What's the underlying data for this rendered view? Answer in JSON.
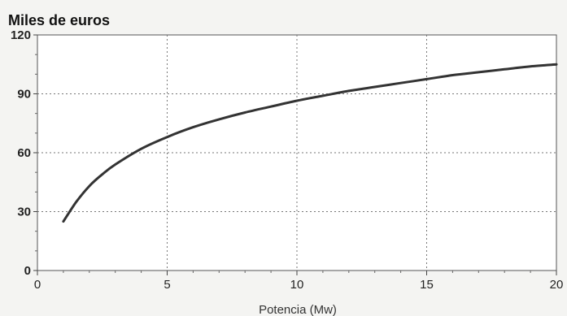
{
  "chart_data": {
    "type": "line",
    "title": "",
    "unit_label": "Miles de euros",
    "xlabel": "Potencia (Mw)",
    "ylabel": "",
    "xlim": [
      0,
      20
    ],
    "ylim": [
      0,
      120
    ],
    "x_ticks": [
      "0",
      "5",
      "10",
      "15",
      "20"
    ],
    "y_ticks": [
      "0",
      "30",
      "60",
      "90",
      "120"
    ],
    "grid": true,
    "series": [
      {
        "x": [
          1,
          1.5,
          2,
          2.5,
          3,
          4,
          5,
          6,
          7,
          8,
          9,
          10,
          11,
          12,
          13,
          14,
          15,
          16,
          17,
          18,
          19,
          20
        ],
        "y": [
          25,
          35,
          43,
          49,
          54,
          62,
          68,
          73,
          77,
          80.5,
          83.5,
          86.5,
          89,
          91.5,
          93.5,
          95.5,
          97.5,
          99.5,
          101,
          102.5,
          104,
          105
        ],
        "color": "#333333"
      }
    ]
  }
}
